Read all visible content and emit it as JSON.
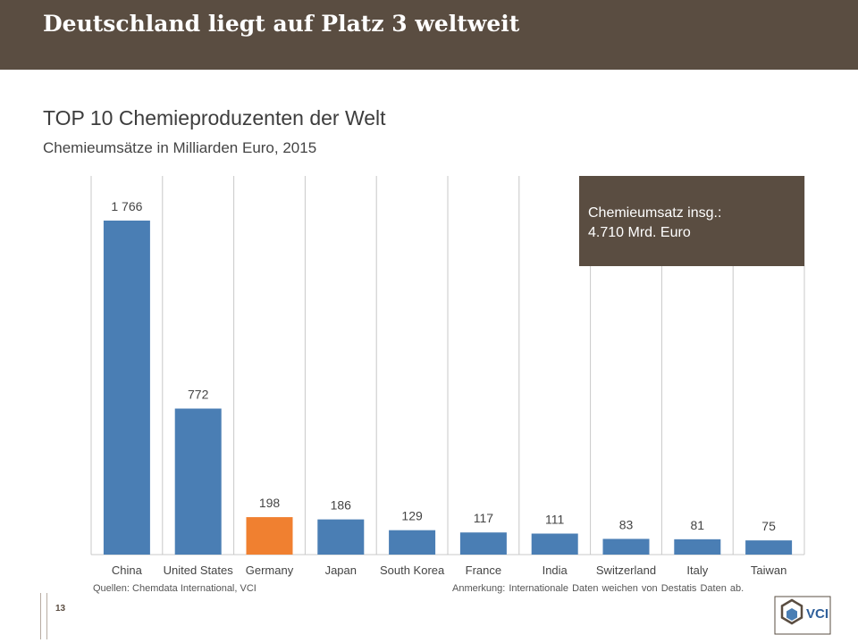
{
  "header": {
    "title": "Deutschland liegt auf Platz 3 weltweit"
  },
  "chart_data": {
    "type": "bar",
    "title": "TOP 10 Chemieproduzenten der Welt",
    "subtitle": "Chemieumsätze in Milliarden Euro, 2015",
    "xlabel": "",
    "ylabel": "",
    "categories": [
      "China",
      "United States",
      "Germany",
      "Japan",
      "South Korea",
      "France",
      "India",
      "Switzerland",
      "Italy",
      "Taiwan"
    ],
    "values": [
      1766,
      772,
      198,
      186,
      129,
      117,
      111,
      83,
      81,
      75
    ],
    "value_labels": [
      "1 766",
      "772",
      "198",
      "186",
      "129",
      "117",
      "111",
      "83",
      "81",
      "75"
    ],
    "highlight_index": 2,
    "ylim": [
      0,
      1766
    ],
    "grid": false,
    "colors": {
      "default": "#4a7eb4",
      "highlight": "#f08030"
    }
  },
  "callout": {
    "line1": "Chemieumsatz insg.:",
    "line2": "4.710 Mrd. Euro"
  },
  "footer": {
    "source": "Quellen: Chemdata International, VCI",
    "note": "Anmerkung: Internationale Daten weichen von Destatis Daten ab.",
    "page_number": "13",
    "logo_text": "VCI"
  }
}
